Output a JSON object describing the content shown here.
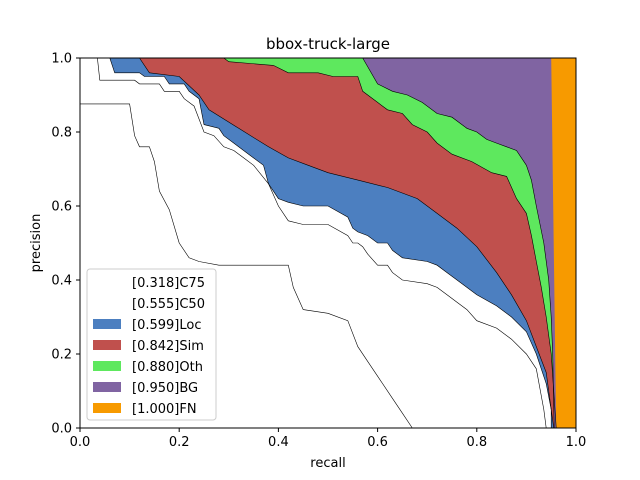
{
  "chart_data": {
    "type": "area",
    "title": "bbox-truck-large",
    "xlabel": "recall",
    "ylabel": "precision",
    "xlim": [
      0,
      1
    ],
    "ylim": [
      0,
      1
    ],
    "xticks": [
      "0.0",
      "0.2",
      "0.4",
      "0.6",
      "0.8",
      "1.0"
    ],
    "yticks": [
      "0.0",
      "0.2",
      "0.4",
      "0.6",
      "0.8",
      "1.0"
    ],
    "legend_position": "lower left",
    "series": [
      {
        "name": "[0.318]C75",
        "color": "#ffffff",
        "points": [
          [
            0,
            0.876
          ],
          [
            0.1,
            0.876
          ],
          [
            0.11,
            0.79
          ],
          [
            0.12,
            0.76
          ],
          [
            0.14,
            0.76
          ],
          [
            0.15,
            0.72
          ],
          [
            0.16,
            0.64
          ],
          [
            0.18,
            0.59
          ],
          [
            0.2,
            0.5
          ],
          [
            0.22,
            0.46
          ],
          [
            0.24,
            0.45
          ],
          [
            0.28,
            0.44
          ],
          [
            0.42,
            0.44
          ],
          [
            0.43,
            0.38
          ],
          [
            0.45,
            0.32
          ],
          [
            0.5,
            0.31
          ],
          [
            0.54,
            0.29
          ],
          [
            0.56,
            0.22
          ],
          [
            0.58,
            0.18
          ],
          [
            0.6,
            0.14
          ],
          [
            0.63,
            0.08
          ],
          [
            0.65,
            0.04
          ],
          [
            0.67,
            0
          ]
        ]
      },
      {
        "name": "[0.555]C50",
        "color": "#ffffff",
        "points": [
          [
            0.035,
            1
          ],
          [
            0.04,
            0.94
          ],
          [
            0.11,
            0.94
          ],
          [
            0.12,
            0.93
          ],
          [
            0.16,
            0.93
          ],
          [
            0.17,
            0.91
          ],
          [
            0.2,
            0.91
          ],
          [
            0.21,
            0.89
          ],
          [
            0.23,
            0.87
          ],
          [
            0.25,
            0.8
          ],
          [
            0.27,
            0.79
          ],
          [
            0.29,
            0.76
          ],
          [
            0.31,
            0.75
          ],
          [
            0.33,
            0.73
          ],
          [
            0.35,
            0.71
          ],
          [
            0.38,
            0.66
          ],
          [
            0.4,
            0.6
          ],
          [
            0.42,
            0.56
          ],
          [
            0.45,
            0.55
          ],
          [
            0.5,
            0.55
          ],
          [
            0.54,
            0.52
          ],
          [
            0.55,
            0.5
          ],
          [
            0.56,
            0.5
          ],
          [
            0.57,
            0.49
          ],
          [
            0.58,
            0.47
          ],
          [
            0.6,
            0.44
          ],
          [
            0.62,
            0.44
          ],
          [
            0.63,
            0.42
          ],
          [
            0.65,
            0.4
          ],
          [
            0.7,
            0.39
          ],
          [
            0.72,
            0.38
          ],
          [
            0.74,
            0.36
          ],
          [
            0.76,
            0.34
          ],
          [
            0.78,
            0.32
          ],
          [
            0.8,
            0.29
          ],
          [
            0.84,
            0.27
          ],
          [
            0.87,
            0.24
          ],
          [
            0.9,
            0.2
          ],
          [
            0.92,
            0.16
          ],
          [
            0.935,
            0.05
          ],
          [
            0.94,
            0
          ]
        ]
      },
      {
        "name": "[0.599]Loc",
        "color": "#4c7fc0",
        "points": [
          [
            0.06,
            1
          ],
          [
            0.07,
            0.96
          ],
          [
            0.12,
            0.96
          ],
          [
            0.13,
            0.95
          ],
          [
            0.17,
            0.95
          ],
          [
            0.18,
            0.93
          ],
          [
            0.21,
            0.93
          ],
          [
            0.22,
            0.91
          ],
          [
            0.24,
            0.89
          ],
          [
            0.25,
            0.82
          ],
          [
            0.28,
            0.81
          ],
          [
            0.29,
            0.79
          ],
          [
            0.31,
            0.77
          ],
          [
            0.34,
            0.74
          ],
          [
            0.37,
            0.71
          ],
          [
            0.38,
            0.66
          ],
          [
            0.4,
            0.62
          ],
          [
            0.42,
            0.61
          ],
          [
            0.45,
            0.6
          ],
          [
            0.5,
            0.6
          ],
          [
            0.54,
            0.57
          ],
          [
            0.55,
            0.54
          ],
          [
            0.56,
            0.53
          ],
          [
            0.58,
            0.52
          ],
          [
            0.6,
            0.5
          ],
          [
            0.62,
            0.5
          ],
          [
            0.63,
            0.48
          ],
          [
            0.65,
            0.46
          ],
          [
            0.7,
            0.45
          ],
          [
            0.72,
            0.44
          ],
          [
            0.74,
            0.42
          ],
          [
            0.76,
            0.4
          ],
          [
            0.78,
            0.38
          ],
          [
            0.8,
            0.36
          ],
          [
            0.84,
            0.33
          ],
          [
            0.87,
            0.3
          ],
          [
            0.9,
            0.26
          ],
          [
            0.92,
            0.2
          ],
          [
            0.94,
            0.12
          ],
          [
            0.95,
            0.05
          ],
          [
            0.95,
            0
          ]
        ]
      },
      {
        "name": "[0.842]Sim",
        "color": "#c0504d",
        "points": [
          [
            0.12,
            1
          ],
          [
            0.14,
            0.96
          ],
          [
            0.2,
            0.95
          ],
          [
            0.24,
            0.9
          ],
          [
            0.26,
            0.86
          ],
          [
            0.32,
            0.81
          ],
          [
            0.38,
            0.76
          ],
          [
            0.42,
            0.73
          ],
          [
            0.46,
            0.71
          ],
          [
            0.5,
            0.69
          ],
          [
            0.56,
            0.67
          ],
          [
            0.62,
            0.65
          ],
          [
            0.68,
            0.62
          ],
          [
            0.72,
            0.58
          ],
          [
            0.76,
            0.54
          ],
          [
            0.8,
            0.49
          ],
          [
            0.84,
            0.42
          ],
          [
            0.87,
            0.36
          ],
          [
            0.9,
            0.29
          ],
          [
            0.92,
            0.22
          ],
          [
            0.94,
            0.15
          ],
          [
            0.95,
            0.05
          ],
          [
            0.955,
            0
          ]
        ]
      },
      {
        "name": "[0.880]Oth",
        "color": "#5ee85e",
        "points": [
          [
            0.29,
            1
          ],
          [
            0.3,
            0.99
          ],
          [
            0.39,
            0.98
          ],
          [
            0.42,
            0.96
          ],
          [
            0.48,
            0.96
          ],
          [
            0.51,
            0.95
          ],
          [
            0.56,
            0.95
          ],
          [
            0.57,
            0.91
          ],
          [
            0.6,
            0.88
          ],
          [
            0.62,
            0.86
          ],
          [
            0.65,
            0.85
          ],
          [
            0.67,
            0.82
          ],
          [
            0.7,
            0.8
          ],
          [
            0.72,
            0.77
          ],
          [
            0.75,
            0.74
          ],
          [
            0.79,
            0.72
          ],
          [
            0.83,
            0.69
          ],
          [
            0.86,
            0.68
          ],
          [
            0.88,
            0.62
          ],
          [
            0.9,
            0.58
          ],
          [
            0.91,
            0.52
          ],
          [
            0.92,
            0.45
          ],
          [
            0.93,
            0.38
          ],
          [
            0.94,
            0.3
          ],
          [
            0.95,
            0.2
          ],
          [
            0.96,
            0
          ]
        ]
      },
      {
        "name": "[0.950]BG",
        "color": "#8064a2",
        "points": [
          [
            0.3,
            1
          ],
          [
            0.57,
            1
          ],
          [
            0.6,
            0.93
          ],
          [
            0.63,
            0.91
          ],
          [
            0.66,
            0.9
          ],
          [
            0.69,
            0.88
          ],
          [
            0.72,
            0.85
          ],
          [
            0.75,
            0.84
          ],
          [
            0.78,
            0.81
          ],
          [
            0.8,
            0.8
          ],
          [
            0.82,
            0.78
          ],
          [
            0.84,
            0.77
          ],
          [
            0.86,
            0.76
          ],
          [
            0.88,
            0.75
          ],
          [
            0.9,
            0.71
          ],
          [
            0.91,
            0.67
          ],
          [
            0.92,
            0.6
          ],
          [
            0.935,
            0.5
          ],
          [
            0.945,
            0.4
          ],
          [
            0.95,
            0.3
          ],
          [
            0.953,
            0.2
          ],
          [
            0.956,
            0
          ]
        ]
      },
      {
        "name": "[1.000]FN",
        "color": "#f79a00",
        "points": [
          [
            0.95,
            1
          ],
          [
            1,
            1
          ],
          [
            1,
            0
          ],
          [
            0.96,
            0
          ]
        ]
      }
    ]
  }
}
